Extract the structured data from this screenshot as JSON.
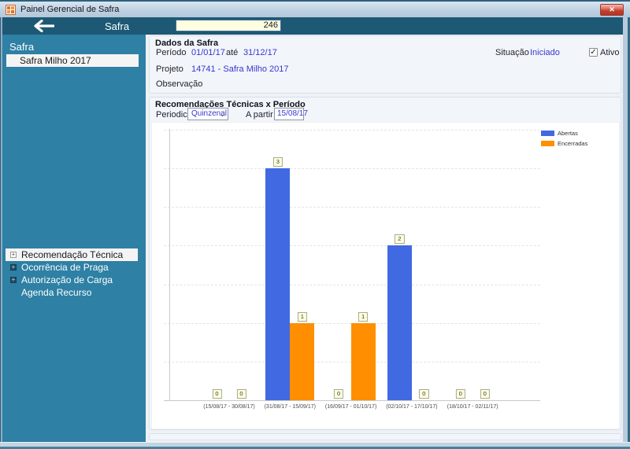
{
  "window": {
    "title": "Painel Gerencial de Safra",
    "close_glyph": "✕"
  },
  "toolbar": {
    "back_icon": "arrow-left-icon",
    "field_label": "Safra",
    "field_value": "246"
  },
  "sidebar": {
    "section_title": "Safra",
    "selected_safra": "Safra Milho 2017",
    "menu": [
      {
        "label": "Recomendação Técnica",
        "expander": true,
        "selected": true
      },
      {
        "label": "Ocorrência de Praga",
        "expander": true,
        "selected": false
      },
      {
        "label": "Autorização de Carga",
        "expander": true,
        "selected": false
      },
      {
        "label": "Agenda Recurso",
        "expander": false,
        "selected": false
      }
    ]
  },
  "dados": {
    "title": "Dados da Safra",
    "periodo_label": "Período",
    "periodo_inicio": "01/01/17",
    "ate_label": "até",
    "periodo_fim": "31/12/17",
    "situacao_label": "Situação",
    "situacao_value": "Iniciado",
    "ativo_label": "Ativo",
    "ativo_checked": "✓",
    "projeto_label": "Projeto",
    "projeto_value": "14741 - Safra Milho 2017",
    "observacao_label": "Observação"
  },
  "recomendacoes": {
    "title": "Recomendações Técnicas x Período",
    "periodicidade_label": "Periodicidade",
    "periodicidade_value": "Quinzenal",
    "a_partir_de_label": "A partir de",
    "a_partir_de_value": "15/08/17"
  },
  "chart_data": {
    "type": "bar",
    "title": "Recomendações Técnicas x Período",
    "xlabel": "",
    "ylabel": "",
    "categories": [
      "(15/08/17 - 30/08/17)",
      "(31/08/17 - 15/09/17)",
      "(16/09/17 - 01/10/17)",
      "(02/10/17 - 17/10/17)",
      "(18/10/17 - 02/11/17)"
    ],
    "series": [
      {
        "name": "Abertas",
        "color": "#4169E1",
        "values": [
          0,
          3,
          0,
          2,
          0
        ]
      },
      {
        "name": "Encerradas",
        "color": "#FF8F00",
        "values": [
          0,
          1,
          1,
          0,
          0
        ]
      }
    ],
    "ylim": [
      0,
      3.5
    ],
    "grid_step": 0.5,
    "grid": true,
    "y_tick_labels": false,
    "value_labels": true,
    "legend_position": "top-right"
  },
  "colors": {
    "toolbar_bg": "#1D5875",
    "sidebar_bg": "#2E80A4",
    "accent_link": "#3737CE",
    "series_abertas": "#4169E1",
    "series_encerradas": "#FF8F00",
    "value_label_bg": "#FFFFDE"
  }
}
